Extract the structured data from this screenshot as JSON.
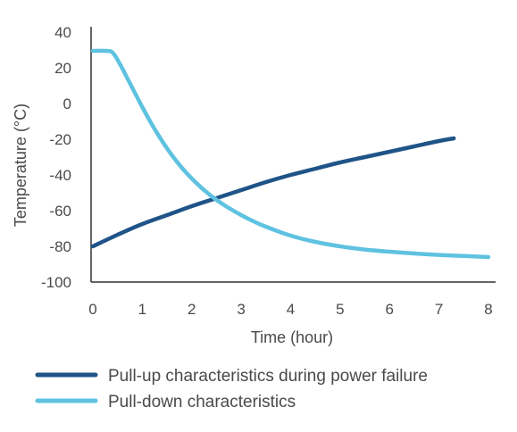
{
  "chart_data": {
    "type": "line",
    "title": "",
    "xlabel": "Time (hour)",
    "ylabel": "Temperature (°C)",
    "xlim": [
      0,
      8
    ],
    "ylim": [
      -100,
      40
    ],
    "xticks": [
      0,
      1,
      2,
      3,
      4,
      5,
      6,
      7,
      8
    ],
    "yticks": [
      40,
      20,
      0,
      -20,
      -40,
      -60,
      -80,
      -100
    ],
    "grid": false,
    "legend_position": "bottom",
    "series": [
      {
        "name": "Pull-up characteristics during power failure",
        "color": "#1f5488",
        "x": [
          0,
          0.5,
          1,
          1.5,
          2,
          2.5,
          3,
          3.5,
          4,
          4.5,
          5,
          5.5,
          6,
          6.5,
          7,
          7.3
        ],
        "y": [
          -80,
          -73.5,
          -67.5,
          -62.5,
          -57.5,
          -53,
          -48.5,
          -44,
          -40,
          -36.5,
          -33,
          -30,
          -27,
          -24,
          -21,
          -19.5
        ]
      },
      {
        "name": "Pull-down characteristics",
        "color": "#5ec2e0",
        "x": [
          0,
          0.25,
          0.4,
          0.55,
          0.7,
          0.85,
          1,
          1.2,
          1.4,
          1.6,
          1.8,
          2,
          2.25,
          2.5,
          2.75,
          3,
          3.25,
          3.5,
          4,
          4.5,
          5,
          5.5,
          6,
          6.5,
          7,
          7.5,
          8
        ],
        "y": [
          29.5,
          29.5,
          28.5,
          22,
          14,
          6,
          -2,
          -12,
          -21,
          -29,
          -36,
          -42,
          -48.5,
          -54,
          -58.5,
          -62.5,
          -66,
          -69,
          -74,
          -77.5,
          -80,
          -81.8,
          -83,
          -84,
          -84.8,
          -85.4,
          -86
        ]
      }
    ]
  }
}
